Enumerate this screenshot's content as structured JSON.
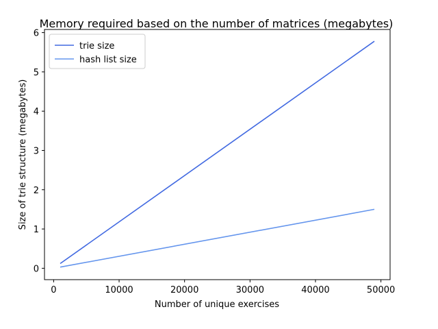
{
  "chart_data": {
    "type": "line",
    "title": "Memory required based on the number of matrices (megabytes)",
    "xlabel": "Number of unique exercises",
    "ylabel": "Size of trie structure (megabytes)",
    "xlim": [
      -1400,
      51400
    ],
    "ylim": [
      -0.29,
      6.08
    ],
    "xticks": [
      0,
      10000,
      20000,
      30000,
      40000,
      50000
    ],
    "yticks": [
      0,
      1,
      2,
      3,
      4,
      5,
      6
    ],
    "grid": false,
    "legend_position": "top-left",
    "series": [
      {
        "name": "trie size",
        "color": "#4169e1",
        "x": [
          1000,
          49000
        ],
        "y": [
          0.12,
          5.78
        ]
      },
      {
        "name": "hash list size",
        "color": "#6495ed",
        "x": [
          1000,
          49000
        ],
        "y": [
          0.03,
          1.5
        ]
      }
    ]
  }
}
